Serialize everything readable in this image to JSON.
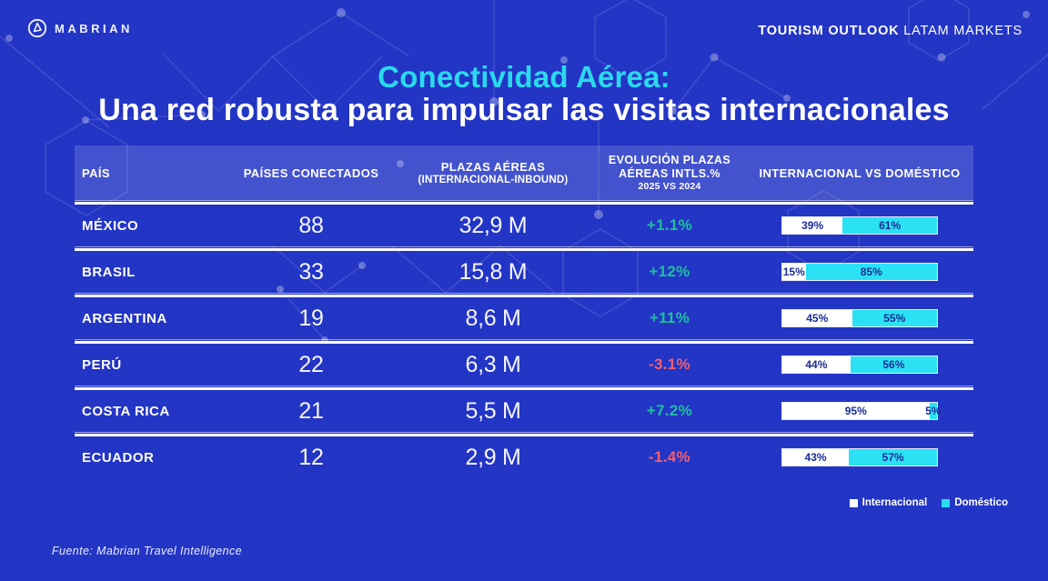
{
  "brand": {
    "logo_text": "MABRIAN"
  },
  "topbar": {
    "right_bold": "TOURISM OUTLOOK",
    "right_regular": " LATAM MARKETS"
  },
  "title": {
    "line1": "Conectividad Aérea:",
    "line2": "Una red robusta para impulsar las visitas internacionales"
  },
  "table": {
    "headers": {
      "col1": "PAÍS",
      "col2": "PAÍSES CONECTADOS",
      "col3": "PLAZAS AÉREAS",
      "col3_sub": "(INTERNACIONAL-INBOUND)",
      "col4": "EVOLUCIÓN PLAZAS AÉREAS INTLS.%",
      "col4_sub": "2025 VS 2024",
      "col5": "INTERNACIONAL VS DOMÉSTICO"
    },
    "rows": [
      {
        "pais": "MÉXICO",
        "paises_conectados": "88",
        "plazas_aereas": "32,9 M",
        "evolucion": "+1.1%",
        "trend": "positive",
        "internacional_pct": 39,
        "domestico_pct": 61,
        "internacional_label": "39%",
        "domestico_label": "61%"
      },
      {
        "pais": "BRASIL",
        "paises_conectados": "33",
        "plazas_aereas": "15,8 M",
        "evolucion": "+12%",
        "trend": "positive",
        "internacional_pct": 15,
        "domestico_pct": 85,
        "internacional_label": "15%",
        "domestico_label": "85%"
      },
      {
        "pais": "ARGENTINA",
        "paises_conectados": "19",
        "plazas_aereas": "8,6 M",
        "evolucion": "+11%",
        "trend": "positive",
        "internacional_pct": 45,
        "domestico_pct": 55,
        "internacional_label": "45%",
        "domestico_label": "55%"
      },
      {
        "pais": "PERÚ",
        "paises_conectados": "22",
        "plazas_aereas": "6,3 M",
        "evolucion": "-3.1%",
        "trend": "negative",
        "internacional_pct": 44,
        "domestico_pct": 56,
        "internacional_label": "44%",
        "domestico_label": "56%"
      },
      {
        "pais": "COSTA RICA",
        "paises_conectados": "21",
        "plazas_aereas": "5,5 M",
        "evolucion": "+7.2%",
        "trend": "positive",
        "internacional_pct": 95,
        "domestico_pct": 5,
        "internacional_label": "95%",
        "domestico_label": "5%"
      },
      {
        "pais": "ECUADOR",
        "paises_conectados": "12",
        "plazas_aereas": "2,9 M",
        "evolucion": "-1.4%",
        "trend": "negative",
        "internacional_pct": 43,
        "domestico_pct": 57,
        "internacional_label": "43%",
        "domestico_label": "57%"
      }
    ]
  },
  "legend": {
    "items": [
      {
        "label": "Internacional",
        "color": "#ffffff"
      },
      {
        "label": "Doméstico",
        "color": "#2bdcf0"
      }
    ]
  },
  "footer": {
    "source": "Fuente: Mabrian Travel Intelligence"
  },
  "colors": {
    "background": "#2335c5",
    "header_band": "rgba(255,255,255,0.15)",
    "accent_cyan": "#2bd9ec",
    "bar_internacional": "#ffffff",
    "bar_domestico": "#2be2f4",
    "bar_text": "#1b2d96",
    "positive": "#1fbf9c",
    "negative": "#f25f6d"
  },
  "chart_data": {
    "type": "table",
    "title": "Conectividad Aérea: Una red robusta para impulsar las visitas internacionales",
    "columns": [
      "País",
      "Países conectados",
      "Plazas aéreas (internacional-inbound)",
      "Evolución plazas aéreas intls. % 2025 vs 2024",
      "Internacional %",
      "Doméstico %"
    ],
    "rows": [
      [
        "México",
        88,
        "32,9 M",
        1.1,
        39,
        61
      ],
      [
        "Brasil",
        33,
        "15,8 M",
        12,
        15,
        85
      ],
      [
        "Argentina",
        19,
        "8,6 M",
        11,
        45,
        55
      ],
      [
        "Perú",
        22,
        "6,3 M",
        -3.1,
        44,
        56
      ],
      [
        "Costa Rica",
        21,
        "5,5 M",
        7.2,
        95,
        5
      ],
      [
        "Ecuador",
        12,
        "2,9 M",
        -1.4,
        43,
        57
      ]
    ],
    "embedded_chart": {
      "type": "bar",
      "subtype": "stacked-horizontal-100pct",
      "categories": [
        "México",
        "Brasil",
        "Argentina",
        "Perú",
        "Costa Rica",
        "Ecuador"
      ],
      "series": [
        {
          "name": "Internacional",
          "values": [
            39,
            15,
            45,
            44,
            95,
            43
          ],
          "color": "#ffffff"
        },
        {
          "name": "Doméstico",
          "values": [
            61,
            85,
            55,
            56,
            5,
            57
          ],
          "color": "#2be2f4"
        }
      ],
      "legend_position": "bottom-right"
    },
    "source": "Fuente: Mabrian Travel Intelligence"
  }
}
